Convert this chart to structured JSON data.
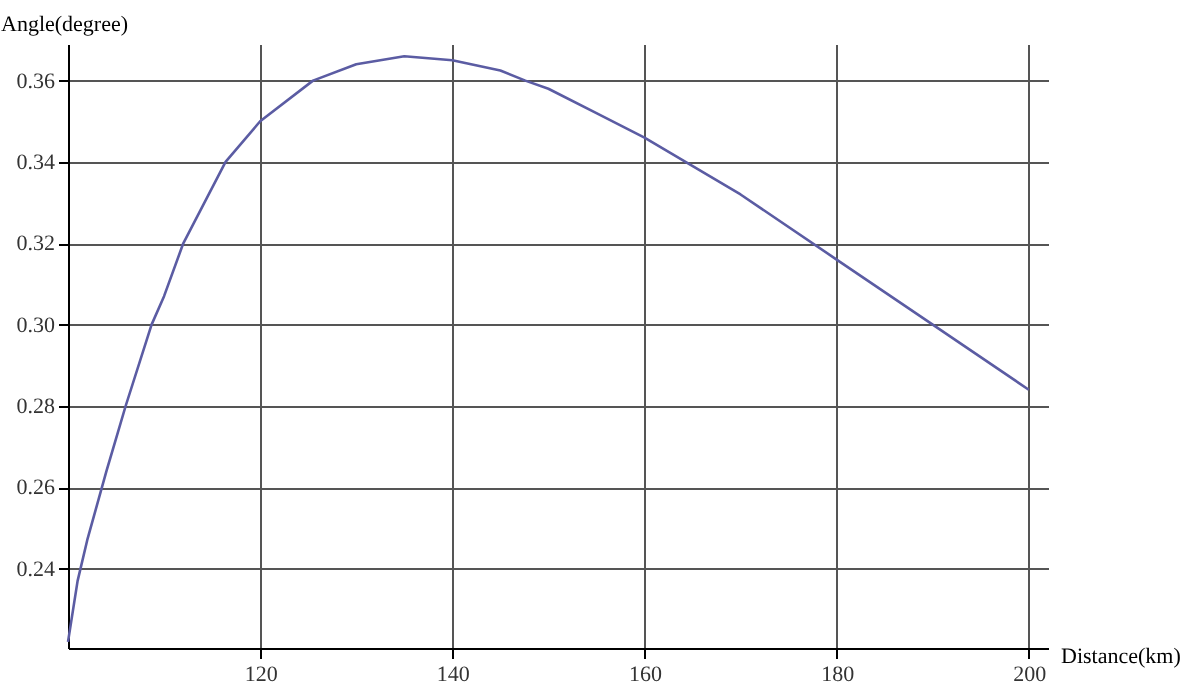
{
  "chart_data": {
    "type": "line",
    "xlabel": "Distance(km)",
    "ylabel": "Angle(degree)",
    "x": [
      100,
      101,
      102,
      104,
      105,
      106,
      108.7,
      110,
      112,
      116.4,
      120,
      125.5,
      130,
      135,
      140,
      145,
      147.6,
      150,
      155,
      160,
      170,
      180,
      190,
      200
    ],
    "series": [
      {
        "color": "#5b5ca3",
        "values": [
          0.222,
          0.237,
          0.247,
          0.264,
          0.272,
          0.28,
          0.3,
          0.307,
          0.32,
          0.34,
          0.35,
          0.36,
          0.364,
          0.366,
          0.365,
          0.3625,
          0.36,
          0.358,
          0.352,
          0.346,
          0.332,
          0.316,
          0.3,
          0.284
        ]
      }
    ],
    "xlim": [
      100,
      202
    ],
    "ylim": [
      0.2205,
      0.369
    ],
    "xticks": [
      120,
      140,
      160,
      180,
      200
    ],
    "yticks": [
      0.24,
      0.26,
      0.28,
      {
        "value": 0.3,
        "label": "0.30"
      },
      0.32,
      0.34,
      0.36
    ],
    "grid": true,
    "marker": "none",
    "line_style": "solid"
  }
}
